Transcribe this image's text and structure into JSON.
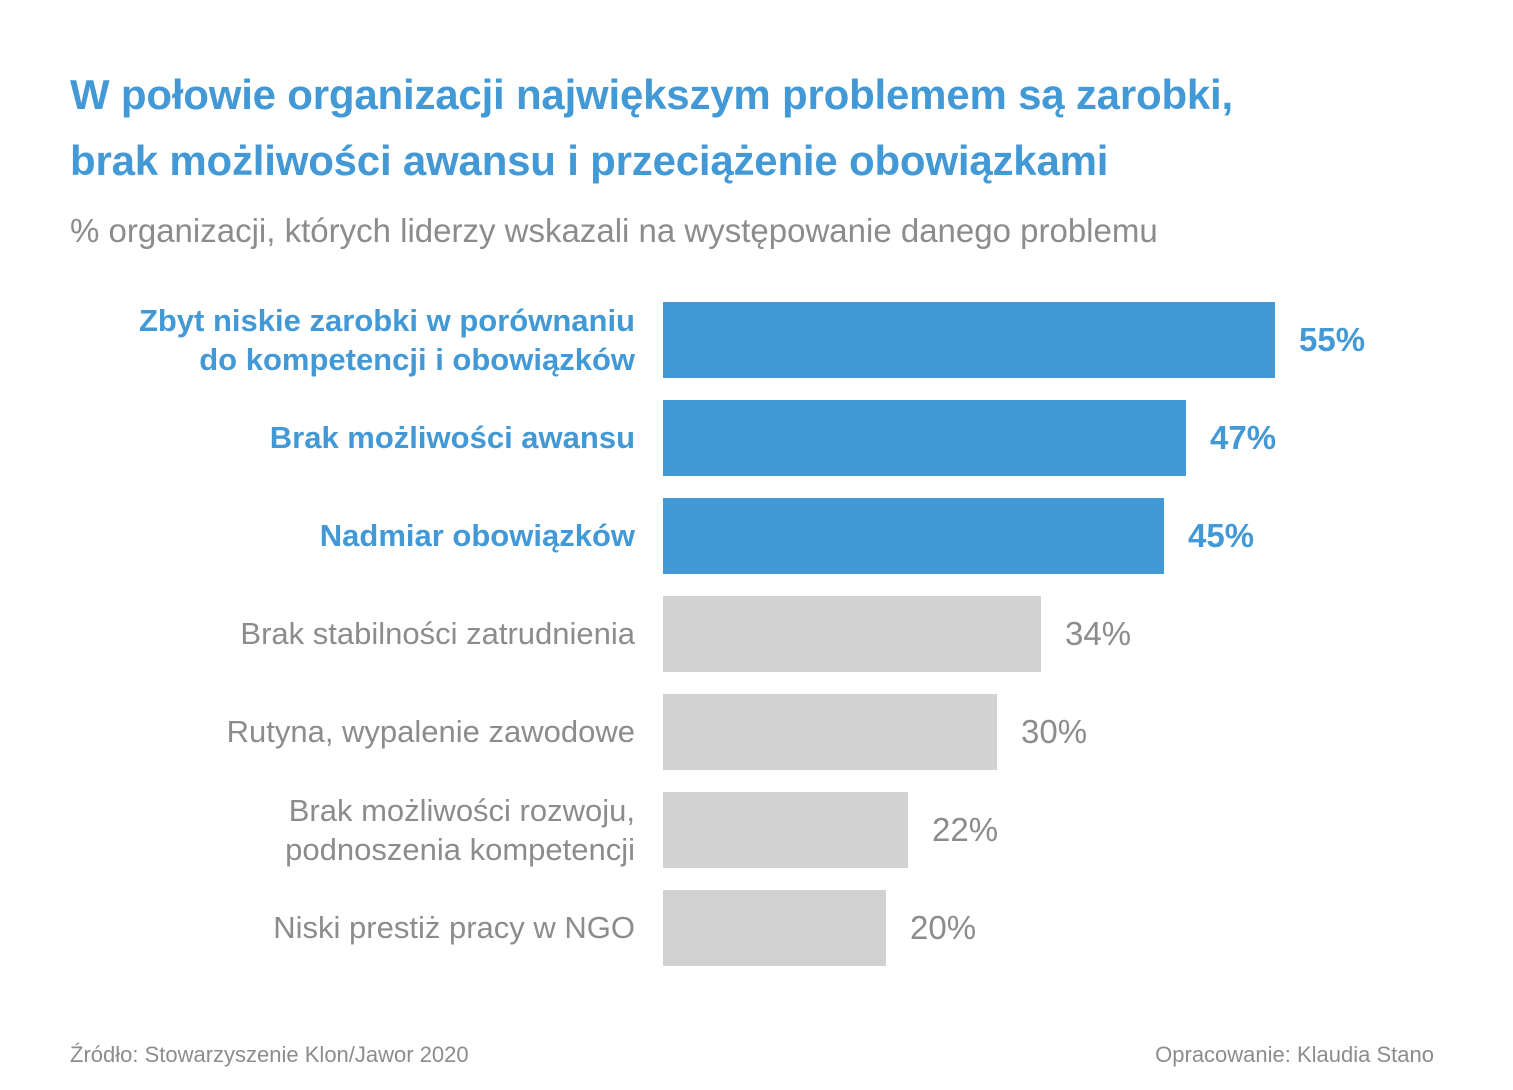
{
  "chart_data": {
    "type": "bar",
    "orientation": "horizontal",
    "title": "W połowie organizacji największym problemem są zarobki,\nbrak możliwości awansu i przeciążenie obowiązkami",
    "subtitle": "% organizacji, których liderzy wskazali na występowanie danego problemu",
    "categories": [
      "Zbyt niskie zarobki w porównaniu do kompetencji i obowiązków",
      "Brak możliwości awansu",
      "Nadmiar obowiązków",
      "Brak stabilności zatrudnienia",
      "Rutyna, wypalenie zawodowe",
      "Brak możliwości rozwoju, podnoszenia kompetencji",
      "Niski prestiż pracy w NGO"
    ],
    "values": [
      55,
      47,
      45,
      34,
      30,
      22,
      20
    ],
    "value_labels": [
      "55%",
      "47%",
      "45%",
      "34%",
      "30%",
      "22%",
      "20%"
    ],
    "highlighted": [
      true,
      true,
      true,
      false,
      false,
      false,
      false
    ],
    "xlabel": "",
    "ylabel": "",
    "xlim": [
      0,
      60
    ],
    "grid": false,
    "legend": "none",
    "colors": {
      "highlight_bar": "#4299d5",
      "muted_bar": "#d2d2d2",
      "muted_text": "#8c8c8c"
    }
  },
  "bars": [
    {
      "label": "Zbyt niskie zarobki w porównaniu\ndo kompetencji i obowiązków",
      "value": 55,
      "value_label": "55%",
      "highlighted": true
    },
    {
      "label": "Brak możliwości awansu",
      "value": 47,
      "value_label": "47%",
      "highlighted": true
    },
    {
      "label": "Nadmiar obowiązków",
      "value": 45,
      "value_label": "45%",
      "highlighted": true
    },
    {
      "label": "Brak stabilności zatrudnienia",
      "value": 34,
      "value_label": "34%",
      "highlighted": false
    },
    {
      "label": "Rutyna, wypalenie zawodowe",
      "value": 30,
      "value_label": "30%",
      "highlighted": false
    },
    {
      "label": "Brak możliwości rozwoju,\npodnoszenia kompetencji",
      "value": 22,
      "value_label": "22%",
      "highlighted": false
    },
    {
      "label": "Niski prestiż pracy w NGO",
      "value": 20,
      "value_label": "20%",
      "highlighted": false
    }
  ],
  "footer": {
    "source": "Źródło: Stowarzyszenie Klon/Jawor 2020",
    "credit": "Opracowanie: Klaudia Stano"
  }
}
